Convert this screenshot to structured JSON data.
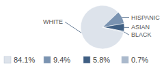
{
  "chart_data": {
    "type": "pie",
    "categories": [
      "WHITE",
      "HISPANIC",
      "ASIAN",
      "BLACK"
    ],
    "values": [
      84.1,
      9.4,
      5.8,
      0.7
    ],
    "value_labels": [
      "84.1%",
      "9.4%",
      "5.8%",
      "0.7%"
    ],
    "colors": [
      "#dde3eb",
      "#7a93b1",
      "#3f5f83",
      "#aab9cc"
    ],
    "legend": "bottom"
  }
}
